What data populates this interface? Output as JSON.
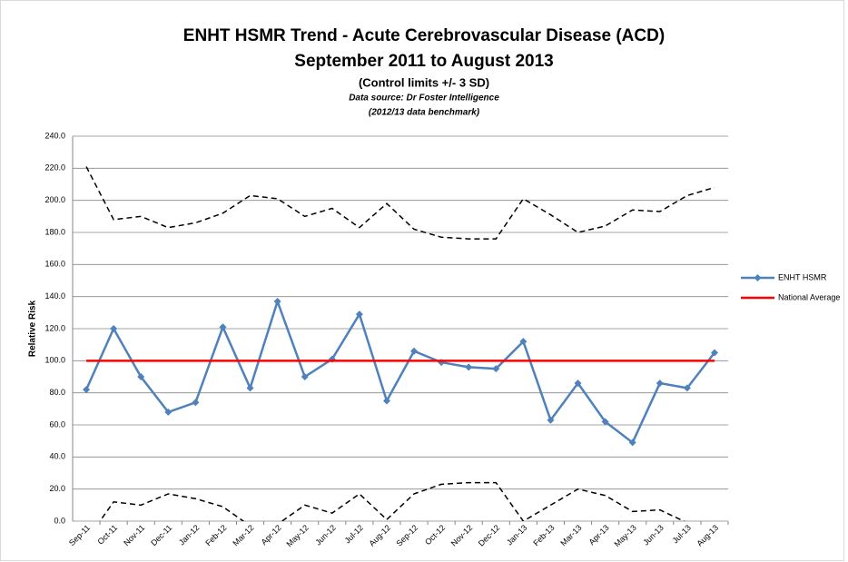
{
  "chart_data": {
    "type": "line",
    "title": "ENHT HSMR Trend - Acute Cerebrovascular Disease (ACD)",
    "subtitle": "September 2011 to August 2013",
    "subtitle2": "(Control limits +/- 3 SD)",
    "note1": "Data source: Dr Foster Intelligence",
    "note2": "(2012/13 data benchmark)",
    "y_label": "Relative Risk",
    "categories": [
      "Sep-11",
      "Oct-11",
      "Nov-11",
      "Dec-11",
      "Jan-12",
      "Feb-12",
      "Mar-12",
      "Apr-12",
      "May-12",
      "Jun-12",
      "Jul-12",
      "Aug-12",
      "Sep-12",
      "Oct-12",
      "Nov-12",
      "Dec-12",
      "Jan-13",
      "Feb-13",
      "Mar-13",
      "Apr-13",
      "May-13",
      "Jun-13",
      "Jul-13",
      "Aug-13"
    ],
    "series": [
      {
        "name": "ENHT HSMR",
        "color": "#4f81bd",
        "marker": "diamond",
        "line_style": "solid",
        "values": [
          82,
          120,
          90,
          68,
          74,
          121,
          83,
          137,
          90,
          101,
          129,
          75,
          106,
          99,
          96,
          95,
          112,
          63,
          86,
          62,
          49,
          86,
          83,
          105
        ]
      },
      {
        "name": "National Average",
        "color": "#ff0000",
        "marker": "none",
        "line_style": "solid",
        "values": [
          100,
          100,
          100,
          100,
          100,
          100,
          100,
          100,
          100,
          100,
          100,
          100,
          100,
          100,
          100,
          100,
          100,
          100,
          100,
          100,
          100,
          100,
          100,
          100
        ]
      },
      {
        "color": "#000000",
        "marker": "none",
        "line_style": "dashed",
        "values": [
          221,
          188,
          190,
          183,
          186,
          192,
          203,
          201,
          190,
          195,
          183,
          198,
          182,
          177,
          176,
          176,
          201,
          191,
          180,
          184,
          194,
          193,
          203,
          208
        ]
      },
      {
        "color": "#000000",
        "marker": "none",
        "line_style": "dashed",
        "values": [
          -12,
          12,
          10,
          17,
          14,
          9,
          -3,
          -2,
          10,
          5,
          17,
          1,
          17,
          23,
          24,
          24,
          0,
          10,
          20,
          16,
          6,
          7,
          -1,
          -8
        ]
      }
    ],
    "ylim": [
      0,
      240
    ],
    "yticks": [
      {
        "value": 0,
        "label": "0.0"
      },
      {
        "value": 20,
        "label": "20.0"
      },
      {
        "value": 40,
        "label": "40.0"
      },
      {
        "value": 60,
        "label": "60.0"
      },
      {
        "value": 80,
        "label": "80.0"
      },
      {
        "value": 100,
        "label": "100.0"
      },
      {
        "value": 120,
        "label": "120.0"
      },
      {
        "value": 140,
        "label": "140.0"
      },
      {
        "value": 160,
        "label": "160.0"
      },
      {
        "value": 180,
        "label": "180.0"
      },
      {
        "value": 200,
        "label": "200.0"
      },
      {
        "value": 220,
        "label": "220.0"
      },
      {
        "value": 240,
        "label": "240.0"
      }
    ],
    "grid": true,
    "legend": "right"
  }
}
